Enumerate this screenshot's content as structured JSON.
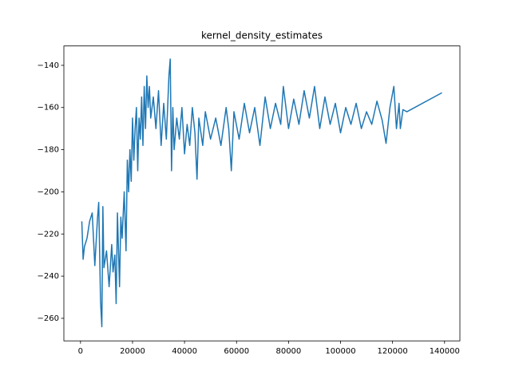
{
  "chart_data": {
    "type": "line",
    "title": "kernel_density_estimates",
    "color": "#1f77b4",
    "x": [
      500,
      1000,
      1500,
      2500,
      3500,
      4500,
      5500,
      6500,
      7000,
      7700,
      8200,
      8600,
      9000,
      10000,
      11000,
      12000,
      12500,
      13200,
      13700,
      14200,
      15000,
      15500,
      16000,
      16800,
      17500,
      18000,
      18500,
      19000,
      19500,
      20000,
      20500,
      21000,
      21500,
      22000,
      22500,
      23000,
      23500,
      24000,
      24500,
      25000,
      25500,
      26000,
      26500,
      27000,
      28000,
      29000,
      30000,
      31000,
      32000,
      33000,
      34000,
      34500,
      35000,
      35500,
      36000,
      37000,
      38000,
      39000,
      40000,
      41000,
      42000,
      43000,
      44000,
      44800,
      45500,
      47000,
      48000,
      50000,
      52000,
      54000,
      56000,
      57000,
      58000,
      59000,
      61000,
      63000,
      65000,
      67000,
      69000,
      71000,
      73000,
      75000,
      77000,
      78000,
      80000,
      82000,
      84000,
      86000,
      88000,
      90000,
      92000,
      94000,
      96000,
      98000,
      100000,
      102000,
      104000,
      106000,
      108000,
      110000,
      112000,
      114000,
      116000,
      117500,
      119000,
      120500,
      121500,
      122500,
      123000,
      124000,
      125500,
      139000
    ],
    "values": [
      -214,
      -232,
      -226,
      -222,
      -214,
      -210,
      -235,
      -213,
      -205,
      -252,
      -264,
      -207,
      -236,
      -228,
      -245,
      -225,
      -238,
      -230,
      -253,
      -210,
      -245,
      -212,
      -222,
      -200,
      -228,
      -185,
      -200,
      -180,
      -195,
      -165,
      -185,
      -170,
      -160,
      -190,
      -165,
      -175,
      -155,
      -178,
      -150,
      -170,
      -145,
      -160,
      -150,
      -165,
      -155,
      -170,
      -152,
      -178,
      -158,
      -175,
      -145,
      -137,
      -190,
      -160,
      -180,
      -165,
      -175,
      -160,
      -182,
      -168,
      -178,
      -160,
      -172,
      -194,
      -165,
      -178,
      -162,
      -175,
      -165,
      -178,
      -160,
      -170,
      -190,
      -162,
      -175,
      -158,
      -172,
      -160,
      -178,
      -155,
      -170,
      -158,
      -168,
      -150,
      -170,
      -156,
      -168,
      -152,
      -165,
      -150,
      -170,
      -155,
      -168,
      -158,
      -172,
      -160,
      -168,
      -158,
      -170,
      -162,
      -168,
      -157,
      -166,
      -177,
      -160,
      -150,
      -170,
      -158,
      -170,
      -161,
      -162,
      -153
    ],
    "xlim": [
      -6400,
      145900
    ],
    "ylim": [
      -270.7,
      -130.8
    ],
    "xticks": [
      0,
      20000,
      40000,
      60000,
      80000,
      100000,
      120000,
      140000
    ],
    "yticks": [
      {
        "value": -260,
        "label": "−260"
      },
      {
        "value": -240,
        "label": "−240"
      },
      {
        "value": -220,
        "label": "−220"
      },
      {
        "value": -200,
        "label": "−200"
      },
      {
        "value": -180,
        "label": "−180"
      },
      {
        "value": -160,
        "label": "−160"
      },
      {
        "value": -140,
        "label": "−140"
      }
    ]
  }
}
